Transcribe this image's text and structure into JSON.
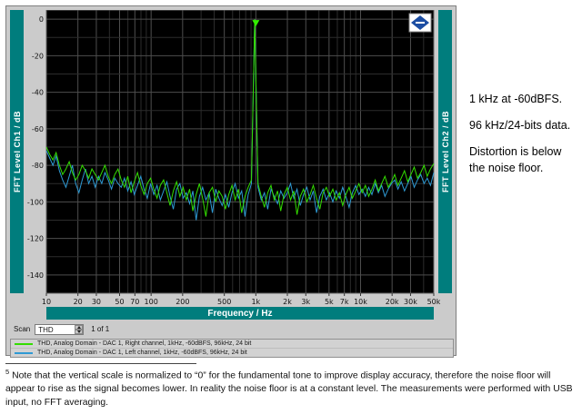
{
  "colors": {
    "teal": "#007d7d",
    "window_gray": "#cbcbcb",
    "plot_bg": "#000000",
    "green_trace": "#33dd00",
    "blue_trace": "#2e9ad4",
    "logo_blue": "#1d4ea3"
  },
  "window": {
    "left_axis_label": "FFT Level Ch1 / dB",
    "right_axis_label": "FFT Level Ch2 / dB",
    "x_axis_label": "Frequency / Hz",
    "logo": "R&S",
    "scan": {
      "label": "Scan",
      "value": "THD",
      "page": "1 of 1"
    },
    "legend": [
      {
        "color": "#33dd00",
        "label": "THD, Analog Domain - DAC 1, Right channel, 1kHz, -60dBFS, 96kHz, 24 bit"
      },
      {
        "color": "#2e9ad4",
        "label": "THD, Analog Domain - DAC 1, Left channel, 1kHz, -60dBFS, 96kHz, 24 bit"
      }
    ]
  },
  "chart_data": {
    "type": "line",
    "x_scale": "log",
    "xlabel": "Frequency / Hz",
    "ylabel_left": "FFT Level Ch1 / dB",
    "ylabel_right": "FFT Level Ch2 / dB",
    "x_range": [
      10,
      50000
    ],
    "y_range": [
      -150,
      5
    ],
    "y_ticks": [
      0,
      -20,
      -40,
      -60,
      -80,
      -100,
      -120,
      -140
    ],
    "x_ticks": [
      {
        "f": 10,
        "label": "10"
      },
      {
        "f": 20,
        "label": "20"
      },
      {
        "f": 30,
        "label": "30"
      },
      {
        "f": 50,
        "label": "50"
      },
      {
        "f": 70,
        "label": "70"
      },
      {
        "f": 100,
        "label": "100"
      },
      {
        "f": 200,
        "label": "200"
      },
      {
        "f": 500,
        "label": "500"
      },
      {
        "f": 1000,
        "label": "1k"
      },
      {
        "f": 2000,
        "label": "2k"
      },
      {
        "f": 3000,
        "label": "3k"
      },
      {
        "f": 5000,
        "label": "5k"
      },
      {
        "f": 7000,
        "label": "7k"
      },
      {
        "f": 10000,
        "label": "10k"
      },
      {
        "f": 20000,
        "label": "20k"
      },
      {
        "f": 30000,
        "label": "30k"
      },
      {
        "f": 50000,
        "label": "50k"
      }
    ],
    "marker": {
      "f": 1000,
      "dB": 0,
      "shape": "triangle-down",
      "color": "#33ee00"
    },
    "series": [
      {
        "name": "Ch1 Right channel",
        "color": "#33dd00",
        "f_start": 10,
        "f_end": 50000,
        "spacing": "log",
        "dB": [
          -70,
          -74,
          -77,
          -73,
          -80,
          -85,
          -82,
          -78,
          -84,
          -88,
          -85,
          -80,
          -83,
          -87,
          -82,
          -85,
          -88,
          -84,
          -80,
          -86,
          -90,
          -85,
          -82,
          -88,
          -92,
          -86,
          -95,
          -89,
          -84,
          -91,
          -96,
          -90,
          -87,
          -93,
          -98,
          -91,
          -88,
          -95,
          -102,
          -94,
          -89,
          -97,
          -92,
          -99,
          -93,
          -105,
          -96,
          -90,
          -98,
          -108,
          -95,
          -92,
          -100,
          -94,
          -97,
          -104,
          -96,
          -91,
          -99,
          -93,
          -106,
          -97,
          -92,
          -88,
          0,
          -90,
          -97,
          -103,
          -95,
          -91,
          -99,
          -94,
          -105,
          -96,
          -92,
          -99,
          -94,
          -107,
          -97,
          -93,
          -100,
          -96,
          -91,
          -98,
          -104,
          -95,
          -92,
          -97,
          -93,
          -99,
          -95,
          -102,
          -96,
          -92,
          -98,
          -94,
          -90,
          -95,
          -91,
          -97,
          -93,
          -88,
          -94,
          -90,
          -86,
          -92,
          -89,
          -85,
          -91,
          -87,
          -83,
          -89,
          -85,
          -81,
          -87,
          -84,
          -80,
          -86,
          -82,
          -79
        ]
      },
      {
        "name": "Ch2 Left channel",
        "color": "#2e9ad4",
        "f_start": 10,
        "f_end": 50000,
        "spacing": "log",
        "dB": [
          -72,
          -76,
          -80,
          -75,
          -83,
          -88,
          -92,
          -86,
          -80,
          -90,
          -95,
          -88,
          -82,
          -90,
          -86,
          -92,
          -86,
          -90,
          -84,
          -88,
          -93,
          -87,
          -90,
          -92,
          -87,
          -94,
          -89,
          -96,
          -91,
          -86,
          -93,
          -98,
          -90,
          -96,
          -91,
          -99,
          -94,
          -89,
          -97,
          -104,
          -93,
          -90,
          -98,
          -95,
          -101,
          -94,
          -110,
          -97,
          -92,
          -99,
          -95,
          -106,
          -93,
          -98,
          -102,
          -96,
          -103,
          -95,
          -90,
          -98,
          -94,
          -108,
          -96,
          -90,
          0,
          -92,
          -99,
          -95,
          -104,
          -93,
          -97,
          -101,
          -94,
          -98,
          -95,
          -90,
          -98,
          -93,
          -102,
          -96,
          -92,
          -99,
          -94,
          -106,
          -97,
          -93,
          -99,
          -95,
          -100,
          -94,
          -98,
          -92,
          -97,
          -103,
          -95,
          -91,
          -96,
          -93,
          -97,
          -92,
          -96,
          -90,
          -95,
          -91,
          -97,
          -93,
          -90,
          -88,
          -93,
          -89,
          -94,
          -90,
          -86,
          -92,
          -88,
          -85,
          -90,
          -87,
          -91,
          -84
        ]
      }
    ]
  },
  "annotations": {
    "lines": [
      "1 kHz at -60dBFS.",
      "96 kHz/24-bits data.",
      "Distortion is below the noise floor."
    ]
  },
  "footnote": {
    "number": "5",
    "text": "Note that the vertical scale is normalized to “0” for the fundamental tone to improve display accuracy, therefore the noise floor will appear to rise as the signal becomes lower. In reality the noise floor is at a constant level. The measurements were performed with USB input, no FFT averaging."
  }
}
